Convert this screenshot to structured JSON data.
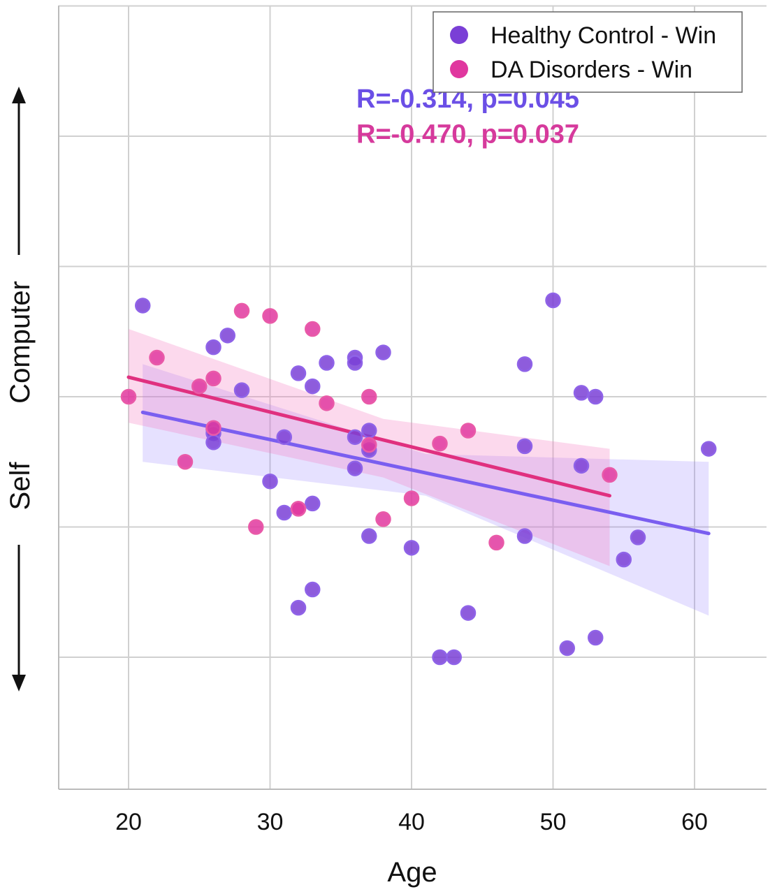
{
  "chart_data": {
    "type": "scatter",
    "xlabel": "Age",
    "ylabel_top": "Computer",
    "ylabel_bottom": "Self",
    "xlim": [
      15,
      65
    ],
    "ylim": [
      -1.0,
      5.0
    ],
    "x_ticks": [
      "20",
      "30",
      "40",
      "50",
      "60"
    ],
    "y_ticks": [
      0,
      1,
      2,
      3,
      4,
      5
    ],
    "y_tick_labels_shown": false,
    "grid": true,
    "legend_position": "top-right",
    "series": [
      {
        "name": "Healthy Control - Win",
        "color": "#7a3fd6",
        "points": [
          [
            21,
            2.7
          ],
          [
            26,
            2.38
          ],
          [
            27,
            2.47
          ],
          [
            26,
            1.75
          ],
          [
            26,
            1.72
          ],
          [
            26,
            1.65
          ],
          [
            28,
            2.05
          ],
          [
            30,
            1.35
          ],
          [
            31,
            1.11
          ],
          [
            31,
            1.69
          ],
          [
            32,
            2.18
          ],
          [
            32,
            0.38
          ],
          [
            33,
            2.08
          ],
          [
            33,
            1.18
          ],
          [
            33,
            0.52
          ],
          [
            34,
            2.26
          ],
          [
            36,
            2.3
          ],
          [
            36,
            2.26
          ],
          [
            36,
            1.69
          ],
          [
            36,
            1.45
          ],
          [
            37,
            1.74
          ],
          [
            37,
            1.59
          ],
          [
            37,
            0.93
          ],
          [
            38,
            2.34
          ],
          [
            40,
            0.84
          ],
          [
            42,
            0.0
          ],
          [
            43,
            0.0
          ],
          [
            44,
            0.34
          ],
          [
            48,
            2.25
          ],
          [
            48,
            1.62
          ],
          [
            48,
            0.93
          ],
          [
            50,
            2.74
          ],
          [
            51,
            0.07
          ],
          [
            52,
            2.03
          ],
          [
            52,
            1.47
          ],
          [
            53,
            2.0
          ],
          [
            53,
            0.15
          ],
          [
            55,
            0.75
          ],
          [
            56,
            0.92
          ],
          [
            61,
            1.6
          ]
        ]
      },
      {
        "name": "DA Disorders - Win",
        "color": "#e0379f",
        "points": [
          [
            20,
            2.0
          ],
          [
            22,
            2.3
          ],
          [
            24,
            1.5
          ],
          [
            25,
            2.08
          ],
          [
            26,
            2.14
          ],
          [
            26,
            1.76
          ],
          [
            28,
            2.66
          ],
          [
            29,
            1.0
          ],
          [
            30,
            2.62
          ],
          [
            32,
            1.14
          ],
          [
            32,
            1.14
          ],
          [
            33,
            2.52
          ],
          [
            34,
            1.95
          ],
          [
            37,
            2.0
          ],
          [
            37,
            1.63
          ],
          [
            38,
            1.06
          ],
          [
            40,
            1.22
          ],
          [
            42,
            1.64
          ],
          [
            44,
            1.74
          ],
          [
            46,
            0.88
          ],
          [
            54,
            1.4
          ]
        ]
      }
    ],
    "regression": [
      {
        "series": "Healthy Control - Win",
        "color": "#7a5ef0",
        "x": [
          21,
          61
        ],
        "y": [
          1.88,
          0.95
        ],
        "band_upper": [
          [
            21,
            2.25
          ],
          [
            41,
            1.56
          ],
          [
            61,
            1.5
          ]
        ],
        "band_lower": [
          [
            21,
            1.5
          ],
          [
            41,
            1.24
          ],
          [
            61,
            0.32
          ]
        ]
      },
      {
        "series": "DA Disorders - Win",
        "color": "#e0307f",
        "x": [
          20,
          54
        ],
        "y": [
          2.15,
          1.24
        ],
        "band_upper": [
          [
            20,
            2.52
          ],
          [
            38,
            1.83
          ],
          [
            54,
            1.6
          ]
        ],
        "band_lower": [
          [
            20,
            1.8
          ],
          [
            38,
            1.38
          ],
          [
            54,
            0.7
          ]
        ]
      }
    ],
    "annotations": [
      {
        "text": "R=-0.314, p=0.045",
        "color": "#6b4fe6",
        "x": 36,
        "y": 4.22
      },
      {
        "text": "R=-0.470, p=0.037",
        "color": "#d63a9c",
        "x": 36,
        "y": 3.95
      }
    ]
  }
}
